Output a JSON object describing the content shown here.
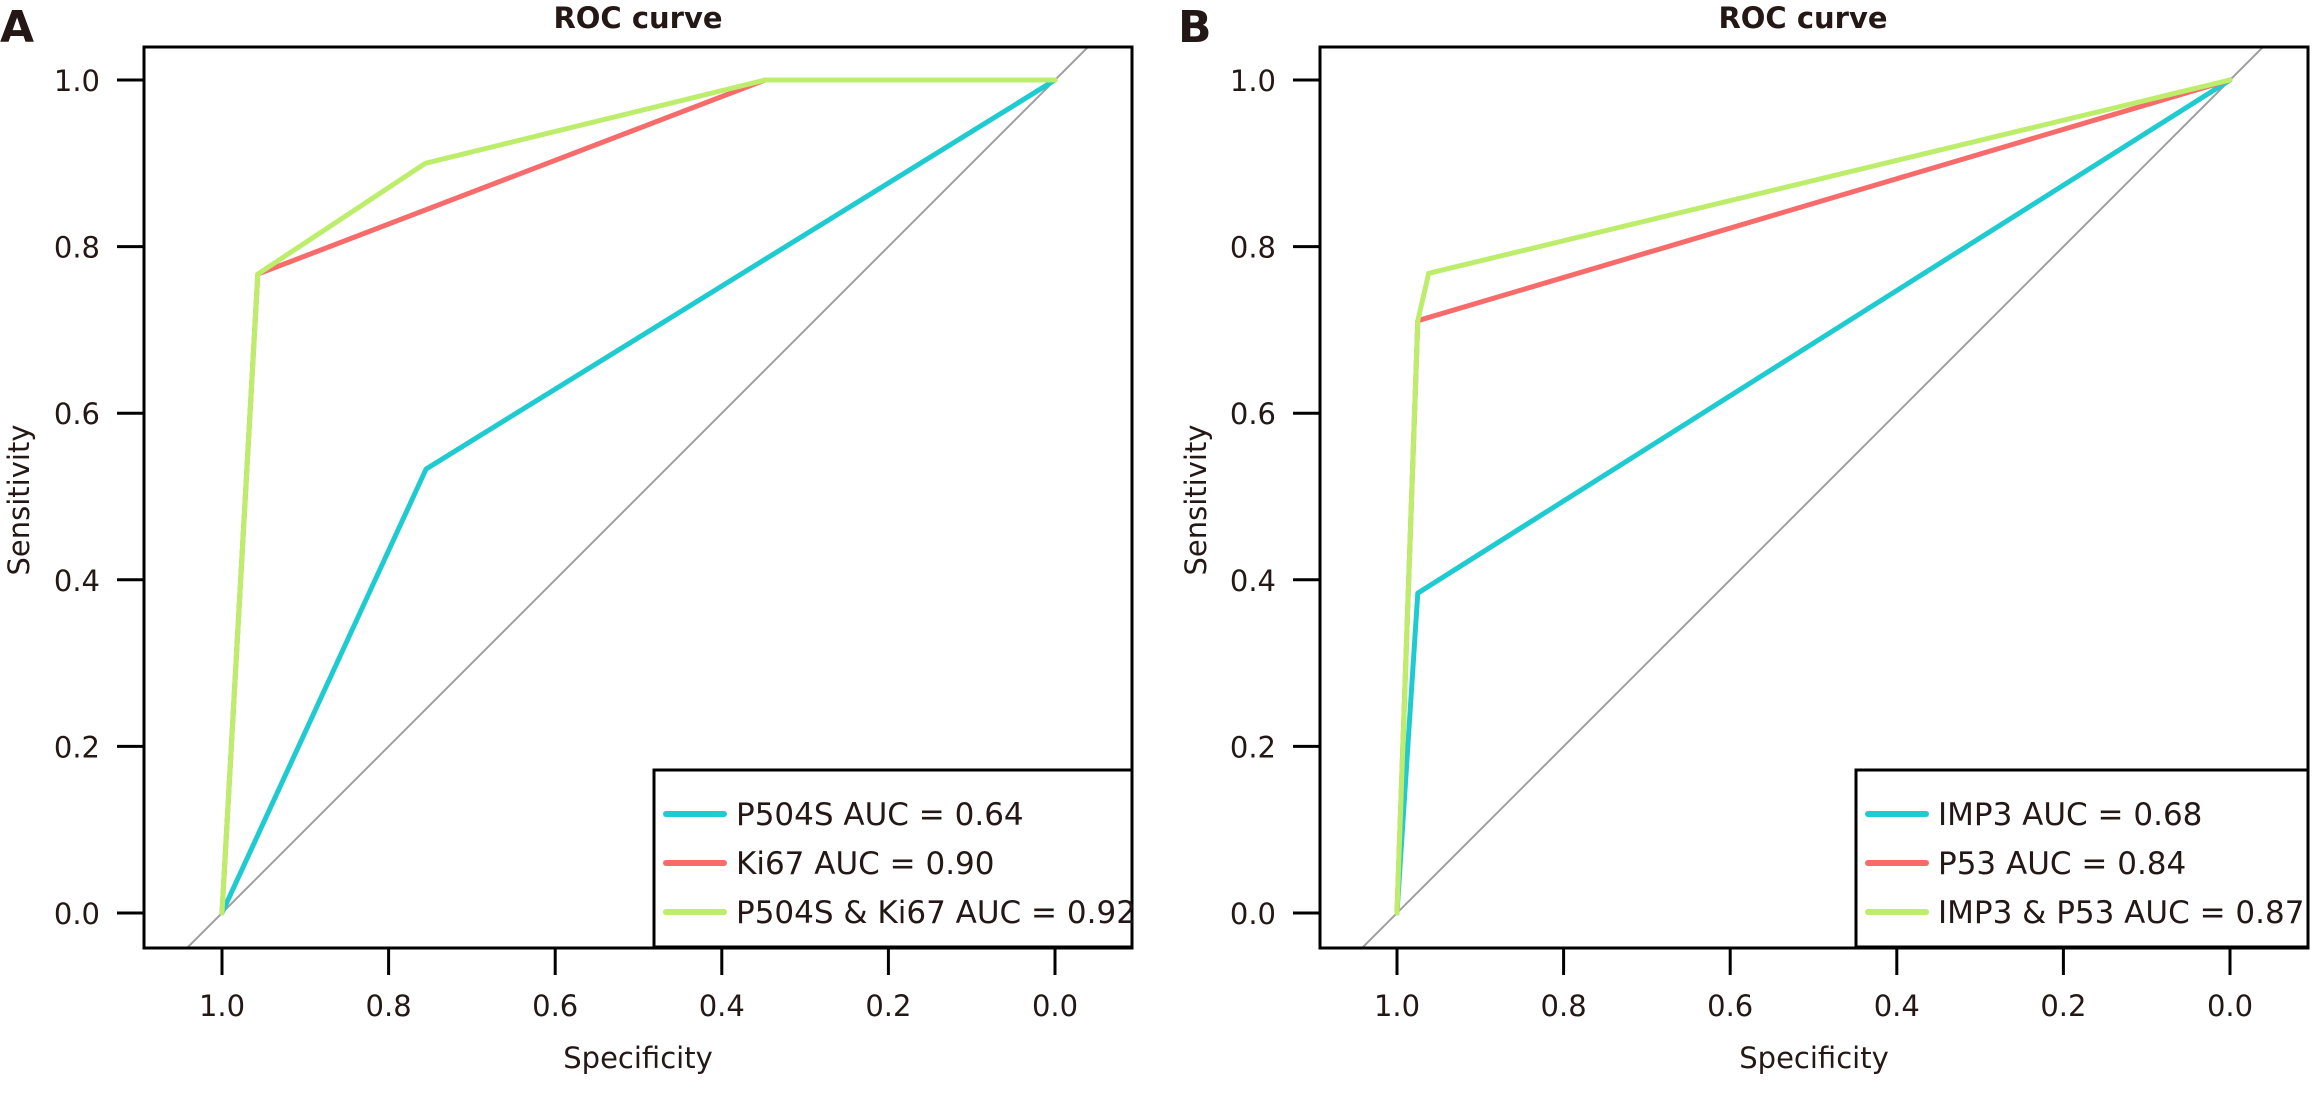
{
  "chart_data": [
    {
      "type": "line",
      "panel_label": "A",
      "title": "ROC curve",
      "xlabel": "Specificity",
      "ylabel": "Sensitivity",
      "xlim": [
        1.0,
        0.0
      ],
      "ylim": [
        0.0,
        1.0
      ],
      "x_reversed": true,
      "xticks": [
        "1.0",
        "0.8",
        "0.6",
        "0.4",
        "0.2",
        "0.0"
      ],
      "yticks": [
        "0.0",
        "0.2",
        "0.4",
        "0.6",
        "0.8",
        "1.0"
      ],
      "grid": false,
      "legend_position": "bottom-right",
      "reference_line": {
        "name": "chance diagonal",
        "color": "#a0a0a0"
      },
      "series": [
        {
          "name": "P504S AUC = 0.64",
          "color": "#1ecbd0",
          "points": [
            [
              1.0,
              0.0
            ],
            [
              0.755,
              0.533
            ],
            [
              0.0,
              1.0
            ]
          ]
        },
        {
          "name": "Ki67 AUC = 0.90",
          "color": "#f76b6b",
          "points": [
            [
              1.0,
              0.0
            ],
            [
              0.957,
              0.767
            ],
            [
              0.348,
              1.0
            ],
            [
              0.0,
              1.0
            ]
          ]
        },
        {
          "name": "P504S & Ki67 AUC = 0.92",
          "color": "#bdee6b",
          "points": [
            [
              1.0,
              0.0
            ],
            [
              0.957,
              0.767
            ],
            [
              0.756,
              0.9
            ],
            [
              0.348,
              1.0
            ],
            [
              0.0,
              1.0
            ]
          ]
        }
      ]
    },
    {
      "type": "line",
      "panel_label": "B",
      "title": "ROC curve",
      "xlabel": "Specificity",
      "ylabel": "Sensitivity",
      "xlim": [
        1.0,
        0.0
      ],
      "ylim": [
        0.0,
        1.0
      ],
      "x_reversed": true,
      "xticks": [
        "1.0",
        "0.8",
        "0.6",
        "0.4",
        "0.2",
        "0.0"
      ],
      "yticks": [
        "0.0",
        "0.2",
        "0.4",
        "0.6",
        "0.8",
        "1.0"
      ],
      "grid": false,
      "legend_position": "bottom-right",
      "reference_line": {
        "name": "chance diagonal",
        "color": "#a0a0a0"
      },
      "series": [
        {
          "name": "IMP3 AUC = 0.68",
          "color": "#1ecbd0",
          "points": [
            [
              1.0,
              0.0
            ],
            [
              0.975,
              0.384
            ],
            [
              0.0,
              1.0
            ]
          ]
        },
        {
          "name": "P53 AUC = 0.84",
          "color": "#f76b6b",
          "points": [
            [
              1.0,
              0.0
            ],
            [
              0.975,
              0.711
            ],
            [
              0.0,
              1.0
            ]
          ]
        },
        {
          "name": "IMP3 & P53 AUC = 0.87",
          "color": "#bdee6b",
          "points": [
            [
              1.0,
              0.0
            ],
            [
              0.975,
              0.711
            ],
            [
              0.962,
              0.768
            ],
            [
              0.0,
              1.0
            ]
          ]
        }
      ]
    }
  ]
}
